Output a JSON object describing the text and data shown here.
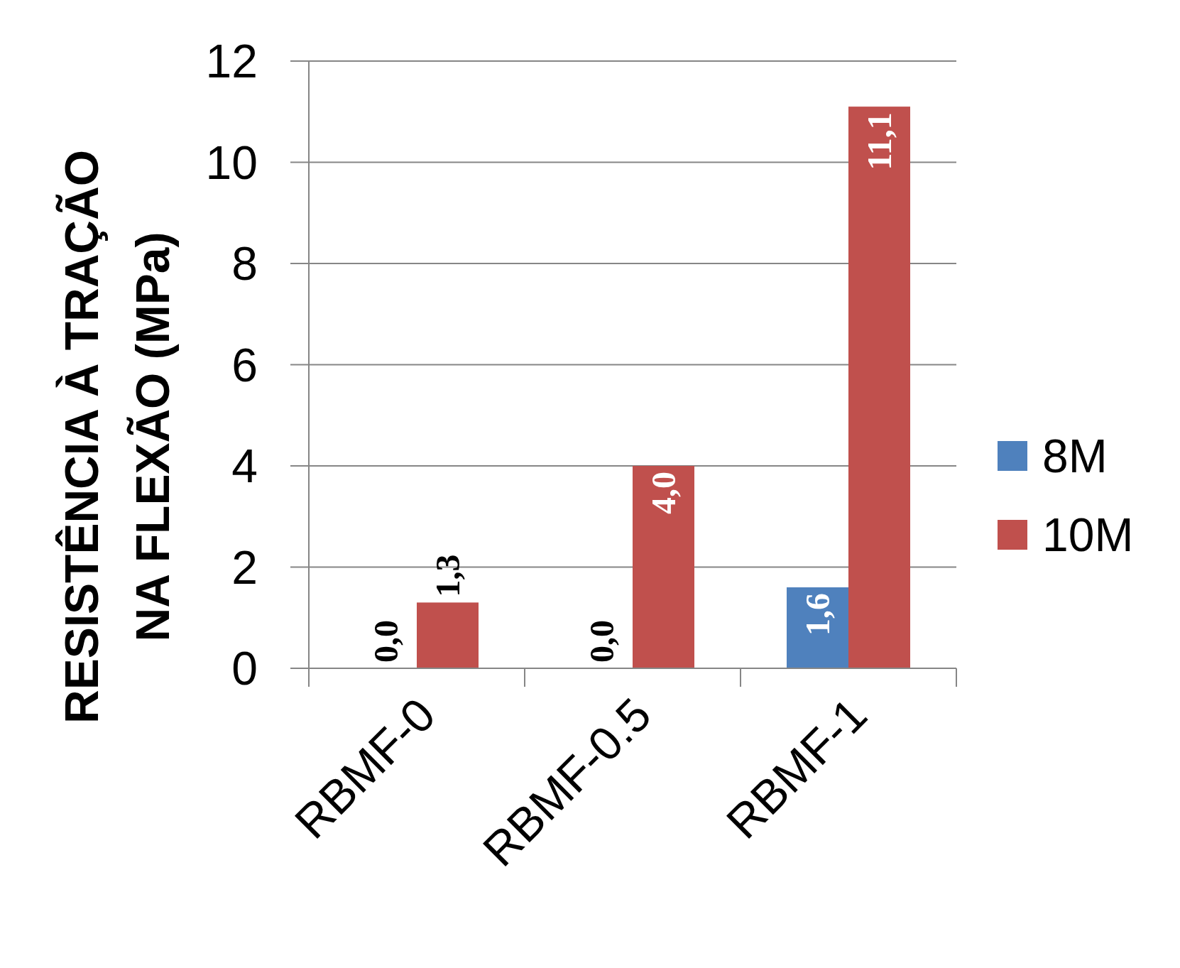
{
  "chart_data": {
    "type": "bar",
    "ylabel": "RESISTÊNCIA À TRAÇÃO\nNA FLEXÃO (MPa)",
    "categories": [
      "RBMF-0",
      "RBMF-0.5",
      "RBMF-1"
    ],
    "series": [
      {
        "name": "8M",
        "color": "#4f81bd",
        "values": [
          0,
          0,
          1.6
        ],
        "value_labels": [
          "0,0",
          "0,0",
          "1,6"
        ]
      },
      {
        "name": "10M",
        "color": "#c0504d",
        "values": [
          1.3,
          4.0,
          11.1
        ],
        "value_labels": [
          "1,3",
          "4,0",
          "11,1"
        ]
      }
    ],
    "ylim": [
      0,
      12
    ],
    "yticks": [
      0,
      2,
      4,
      6,
      8,
      10,
      12
    ],
    "grid": "y",
    "legend": "right"
  }
}
